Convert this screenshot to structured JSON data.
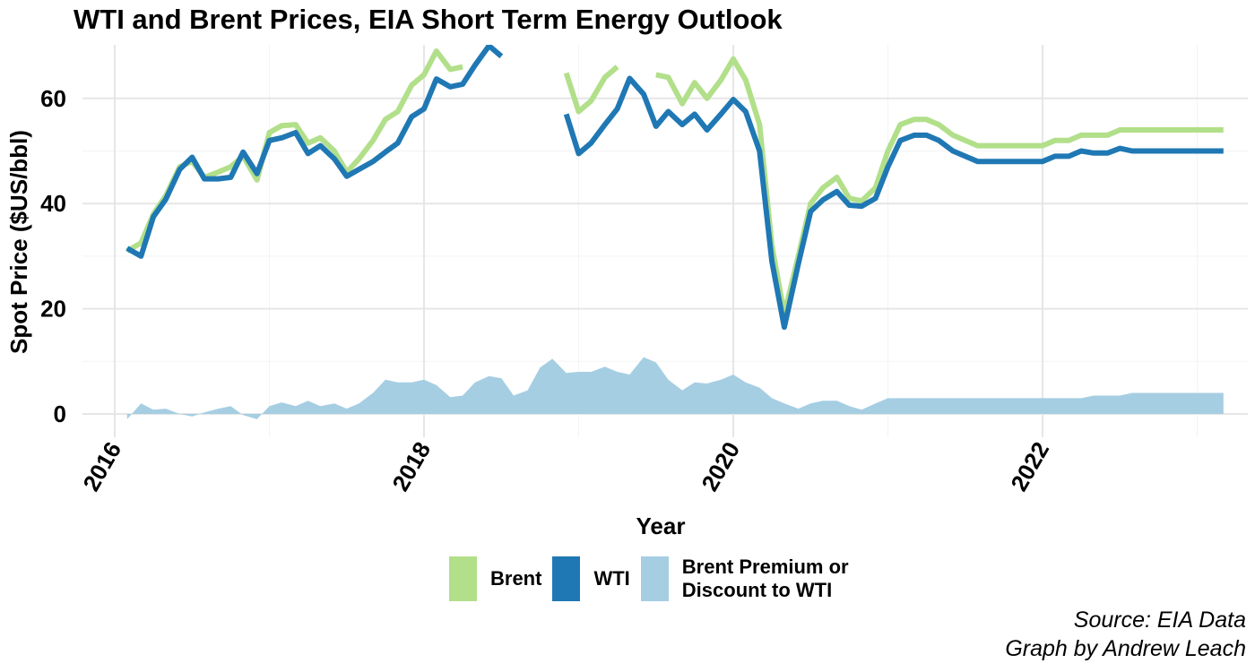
{
  "chart_data": {
    "type": "line",
    "title": "WTI and Brent Prices, EIA Short Term Energy Outlook",
    "xlabel": "Year",
    "ylabel": "Spot Price ($US/bbl)",
    "xlim": [
      2016.0,
      2023.2
    ],
    "ylim": [
      -2,
      70
    ],
    "x_ticks": [
      "2016",
      "2018",
      "2020",
      "2022"
    ],
    "y_ticks": [
      "0",
      "20",
      "40",
      "60"
    ],
    "grid": true,
    "legend_position": "bottom",
    "caption": [
      "Source: EIA Data",
      "Graph by Andrew Leach"
    ],
    "series": [
      {
        "name": "Brent",
        "type": "line",
        "color": "#b2df8a",
        "segments": [
          [
            [
              2016.08,
              31.0
            ],
            [
              2016.17,
              32.5
            ],
            [
              2016.25,
              38.0
            ],
            [
              2016.33,
              41.5
            ],
            [
              2016.42,
              47.0
            ],
            [
              2016.5,
              48.0
            ],
            [
              2016.58,
              45.0
            ],
            [
              2016.67,
              46.0
            ],
            [
              2016.75,
              47.0
            ],
            [
              2016.83,
              49.0
            ],
            [
              2016.92,
              44.5
            ],
            [
              2017.0,
              53.5
            ],
            [
              2017.08,
              54.8
            ],
            [
              2017.17,
              55.0
            ],
            [
              2017.25,
              51.5
            ],
            [
              2017.33,
              52.5
            ],
            [
              2017.42,
              50.0
            ],
            [
              2017.5,
              46.0
            ],
            [
              2017.58,
              48.5
            ],
            [
              2017.67,
              52.0
            ],
            [
              2017.75,
              56.0
            ],
            [
              2017.83,
              57.5
            ],
            [
              2017.92,
              62.5
            ],
            [
              2018.0,
              64.5
            ],
            [
              2018.08,
              69.0
            ],
            [
              2018.17,
              65.5
            ],
            [
              2018.25,
              66.0
            ]
          ],
          [
            [
              2018.92,
              64.8
            ],
            [
              2019.0,
              57.5
            ],
            [
              2019.08,
              59.5
            ],
            [
              2019.17,
              64.0
            ],
            [
              2019.25,
              66.0
            ]
          ],
          [
            [
              2019.5,
              64.5
            ],
            [
              2019.58,
              64.0
            ],
            [
              2019.67,
              59.0
            ],
            [
              2019.75,
              63.0
            ],
            [
              2019.83,
              60.0
            ],
            [
              2019.92,
              63.5
            ],
            [
              2020.0,
              67.5
            ],
            [
              2020.08,
              63.5
            ],
            [
              2020.17,
              55.0
            ],
            [
              2020.25,
              32.0
            ],
            [
              2020.33,
              19.0
            ],
            [
              2020.42,
              30.0
            ],
            [
              2020.5,
              40.0
            ],
            [
              2020.58,
              43.0
            ],
            [
              2020.67,
              45.0
            ],
            [
              2020.75,
              41.0
            ],
            [
              2020.83,
              40.5
            ],
            [
              2020.92,
              43.0
            ],
            [
              2021.0,
              50.0
            ],
            [
              2021.08,
              55.0
            ],
            [
              2021.17,
              56.0
            ],
            [
              2021.25,
              56.0
            ],
            [
              2021.33,
              55.0
            ],
            [
              2021.42,
              53.0
            ],
            [
              2021.5,
              52.0
            ],
            [
              2021.58,
              51.0
            ],
            [
              2021.67,
              51.0
            ],
            [
              2021.75,
              51.0
            ],
            [
              2021.83,
              51.0
            ],
            [
              2021.92,
              51.0
            ],
            [
              2022.0,
              51.0
            ],
            [
              2022.08,
              52.0
            ],
            [
              2022.17,
              52.0
            ],
            [
              2022.25,
              53.0
            ],
            [
              2022.33,
              53.0
            ],
            [
              2022.42,
              53.0
            ],
            [
              2022.5,
              54.0
            ],
            [
              2022.58,
              54.0
            ],
            [
              2022.67,
              54.0
            ],
            [
              2022.75,
              54.0
            ],
            [
              2022.83,
              54.0
            ],
            [
              2022.92,
              54.0
            ],
            [
              2023.0,
              54.0
            ],
            [
              2023.17,
              54.0
            ]
          ]
        ]
      },
      {
        "name": "WTI",
        "type": "line",
        "color": "#1f78b4",
        "segments": [
          [
            [
              2016.08,
              31.5
            ],
            [
              2016.17,
              30.0
            ],
            [
              2016.25,
              37.5
            ],
            [
              2016.33,
              40.8
            ],
            [
              2016.42,
              46.5
            ],
            [
              2016.5,
              48.8
            ],
            [
              2016.58,
              44.7
            ],
            [
              2016.67,
              44.7
            ],
            [
              2016.75,
              45.0
            ],
            [
              2016.83,
              49.8
            ],
            [
              2016.92,
              45.7
            ],
            [
              2017.0,
              52.0
            ],
            [
              2017.08,
              52.5
            ],
            [
              2017.17,
              53.5
            ],
            [
              2017.25,
              49.5
            ],
            [
              2017.33,
              51.0
            ],
            [
              2017.42,
              48.5
            ],
            [
              2017.5,
              45.2
            ],
            [
              2017.58,
              46.5
            ],
            [
              2017.67,
              48.0
            ],
            [
              2017.75,
              49.8
            ],
            [
              2017.83,
              51.5
            ],
            [
              2017.92,
              56.5
            ],
            [
              2018.0,
              58.0
            ],
            [
              2018.08,
              63.7
            ],
            [
              2018.17,
              62.2
            ],
            [
              2018.25,
              62.7
            ],
            [
              2018.33,
              66.3
            ],
            [
              2018.42,
              70.0
            ],
            [
              2018.5,
              68.0
            ]
          ],
          [
            [
              2018.92,
              57.0
            ],
            [
              2019.0,
              49.5
            ],
            [
              2019.08,
              51.5
            ],
            [
              2019.17,
              55.0
            ],
            [
              2019.25,
              58.0
            ],
            [
              2019.33,
              63.8
            ],
            [
              2019.42,
              60.8
            ],
            [
              2019.5,
              54.7
            ],
            [
              2019.58,
              57.5
            ],
            [
              2019.67,
              55.0
            ],
            [
              2019.75,
              57.0
            ],
            [
              2019.83,
              54.0
            ],
            [
              2019.92,
              57.0
            ],
            [
              2020.0,
              59.8
            ],
            [
              2020.08,
              57.5
            ],
            [
              2020.17,
              50.0
            ],
            [
              2020.25,
              29.0
            ],
            [
              2020.33,
              16.5
            ],
            [
              2020.42,
              28.5
            ],
            [
              2020.5,
              38.5
            ],
            [
              2020.58,
              40.7
            ],
            [
              2020.67,
              42.3
            ],
            [
              2020.75,
              39.7
            ],
            [
              2020.83,
              39.5
            ],
            [
              2020.92,
              41.0
            ],
            [
              2021.0,
              47.0
            ],
            [
              2021.08,
              52.0
            ],
            [
              2021.17,
              53.0
            ],
            [
              2021.25,
              53.0
            ],
            [
              2021.33,
              52.0
            ],
            [
              2021.42,
              50.0
            ],
            [
              2021.5,
              49.0
            ],
            [
              2021.58,
              48.0
            ],
            [
              2021.67,
              48.0
            ],
            [
              2021.75,
              48.0
            ],
            [
              2021.83,
              48.0
            ],
            [
              2021.92,
              48.0
            ],
            [
              2022.0,
              48.0
            ],
            [
              2022.08,
              49.0
            ],
            [
              2022.17,
              49.0
            ],
            [
              2022.25,
              50.0
            ],
            [
              2022.33,
              49.6
            ],
            [
              2022.42,
              49.6
            ],
            [
              2022.5,
              50.5
            ],
            [
              2022.58,
              50.0
            ],
            [
              2022.67,
              50.0
            ],
            [
              2022.75,
              50.0
            ],
            [
              2022.83,
              50.0
            ],
            [
              2022.92,
              50.0
            ],
            [
              2023.0,
              50.0
            ],
            [
              2023.17,
              50.0
            ]
          ]
        ]
      },
      {
        "name": "Brent Premium or\nDiscount to WTI",
        "type": "area",
        "color": "#a6cee3",
        "points": [
          [
            2016.08,
            -1.0
          ],
          [
            2016.17,
            2.0
          ],
          [
            2016.25,
            0.8
          ],
          [
            2016.33,
            1.0
          ],
          [
            2016.42,
            0.0
          ],
          [
            2016.5,
            -0.5
          ],
          [
            2016.58,
            0.3
          ],
          [
            2016.67,
            1.0
          ],
          [
            2016.75,
            1.5
          ],
          [
            2016.83,
            -0.2
          ],
          [
            2016.92,
            -1.0
          ],
          [
            2017.0,
            1.5
          ],
          [
            2017.08,
            2.2
          ],
          [
            2017.17,
            1.5
          ],
          [
            2017.25,
            2.5
          ],
          [
            2017.33,
            1.5
          ],
          [
            2017.42,
            2.0
          ],
          [
            2017.5,
            1.0
          ],
          [
            2017.58,
            2.0
          ],
          [
            2017.67,
            4.0
          ],
          [
            2017.75,
            6.5
          ],
          [
            2017.83,
            6.0
          ],
          [
            2017.92,
            6.0
          ],
          [
            2018.0,
            6.5
          ],
          [
            2018.08,
            5.5
          ],
          [
            2018.17,
            3.2
          ],
          [
            2018.25,
            3.5
          ],
          [
            2018.33,
            6.0
          ],
          [
            2018.42,
            7.2
          ],
          [
            2018.5,
            6.8
          ],
          [
            2018.58,
            3.5
          ],
          [
            2018.67,
            4.5
          ],
          [
            2018.75,
            8.8
          ],
          [
            2018.83,
            10.5
          ],
          [
            2018.92,
            7.8
          ],
          [
            2019.0,
            8.0
          ],
          [
            2019.08,
            8.0
          ],
          [
            2019.17,
            9.0
          ],
          [
            2019.25,
            8.0
          ],
          [
            2019.33,
            7.5
          ],
          [
            2019.42,
            10.8
          ],
          [
            2019.5,
            9.8
          ],
          [
            2019.58,
            6.5
          ],
          [
            2019.67,
            4.5
          ],
          [
            2019.75,
            6.0
          ],
          [
            2019.83,
            5.8
          ],
          [
            2019.92,
            6.5
          ],
          [
            2020.0,
            7.5
          ],
          [
            2020.08,
            6.0
          ],
          [
            2020.17,
            5.0
          ],
          [
            2020.25,
            3.0
          ],
          [
            2020.33,
            2.0
          ],
          [
            2020.42,
            1.0
          ],
          [
            2020.5,
            2.0
          ],
          [
            2020.58,
            2.5
          ],
          [
            2020.67,
            2.5
          ],
          [
            2020.75,
            1.5
          ],
          [
            2020.83,
            0.8
          ],
          [
            2020.92,
            2.0
          ],
          [
            2021.0,
            3.0
          ],
          [
            2021.17,
            3.0
          ],
          [
            2021.5,
            3.0
          ],
          [
            2021.75,
            3.0
          ],
          [
            2022.0,
            3.0
          ],
          [
            2022.17,
            3.0
          ],
          [
            2022.25,
            3.0
          ],
          [
            2022.33,
            3.5
          ],
          [
            2022.5,
            3.5
          ],
          [
            2022.58,
            4.0
          ],
          [
            2022.75,
            4.0
          ],
          [
            2023.0,
            4.0
          ],
          [
            2023.17,
            4.0
          ]
        ]
      }
    ]
  }
}
